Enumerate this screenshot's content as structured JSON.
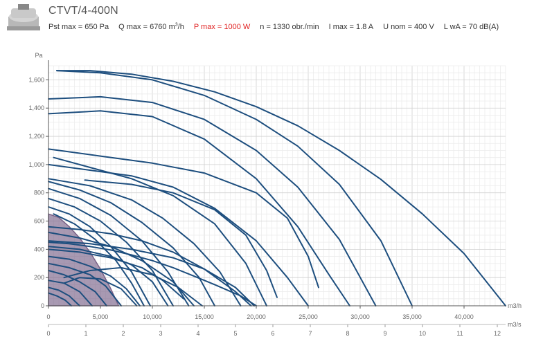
{
  "header": {
    "title": "CTVT/4-400N",
    "specs": {
      "pst_max": "Pst max = 650 Pa",
      "q_max": "Q max = 6760 m",
      "q_max_sup": "3",
      "q_max_unit": "/h",
      "p_max": "P max = 1000 W",
      "n": "n = 1330 obr./min",
      "i_max": "I max = 1.8 A",
      "u_nom": "U nom = 400 V",
      "lwa": "L wA = 70 dB(A)"
    },
    "icons": {
      "product": "roof-fan-icon"
    }
  },
  "colors": {
    "curve": "#1d4e7e",
    "highlight_fill": "#7a6288",
    "grid": "#e3e3e3",
    "axis": "#555555",
    "p_max": "#e01f1f"
  },
  "chart_data": {
    "type": "line",
    "title": "",
    "ylabel": "Pa",
    "xlabel": "m3/h",
    "x2label": "m3/s",
    "xlim": [
      0,
      44000
    ],
    "ylim": [
      0,
      1700
    ],
    "x_ticks": [
      "0",
      "5,000",
      "10,000",
      "15,000",
      "20,000",
      "25,000",
      "30,000",
      "35,000",
      "40,000"
    ],
    "x_tick_values": [
      0,
      5000,
      10000,
      15000,
      20000,
      25000,
      30000,
      35000,
      40000
    ],
    "x2_ticks": [
      "0",
      "1",
      "2",
      "3",
      "4",
      "5",
      "6",
      "7",
      "8",
      "9",
      "10",
      "11",
      "12"
    ],
    "y_ticks": [
      "0",
      "200",
      "400",
      "600",
      "800",
      "1,000",
      "1,200",
      "1,400",
      "1,600"
    ],
    "y_tick_values": [
      0,
      200,
      400,
      600,
      800,
      1000,
      1200,
      1400,
      1600
    ],
    "grid": true,
    "legend": "none",
    "highlighted_curve": {
      "x": [
        0,
        1000,
        2000,
        3000,
        4000,
        5000,
        6000,
        6760
      ],
      "y": [
        650,
        625,
        560,
        480,
        380,
        260,
        120,
        0
      ]
    },
    "series": [
      {
        "x": [
          800,
          4000,
          8000,
          12000,
          16000,
          20000,
          24000,
          28000,
          32000,
          36000,
          40000,
          44000
        ],
        "y": [
          1665,
          1665,
          1640,
          1590,
          1515,
          1410,
          1275,
          1100,
          895,
          650,
          370,
          0
        ]
      },
      {
        "x": [
          800,
          5000,
          10000,
          15000,
          20000,
          24000,
          28000,
          32000,
          35000
        ],
        "y": [
          1665,
          1650,
          1600,
          1490,
          1320,
          1130,
          860,
          460,
          0
        ]
      },
      {
        "x": [
          0,
          5000,
          10000,
          15000,
          20000,
          24000,
          28000,
          31500
        ],
        "y": [
          1465,
          1480,
          1440,
          1320,
          1100,
          840,
          470,
          0
        ]
      },
      {
        "x": [
          0,
          5000,
          10000,
          15000,
          20000,
          24000,
          27000,
          29000
        ],
        "y": [
          1360,
          1380,
          1340,
          1180,
          900,
          560,
          220,
          0
        ]
      },
      {
        "x": [
          0,
          5000,
          10000,
          15000,
          20000,
          23000,
          25000,
          26000
        ],
        "y": [
          1110,
          1060,
          1010,
          940,
          800,
          620,
          350,
          130
        ]
      },
      {
        "x": [
          0,
          4000,
          8000,
          12000,
          16000,
          20000,
          23000,
          25000
        ],
        "y": [
          1000,
          960,
          920,
          840,
          690,
          460,
          200,
          0
        ]
      },
      {
        "x": [
          500,
          4000,
          8000,
          12000,
          16000,
          19000,
          21000
        ],
        "y": [
          1050,
          980,
          900,
          780,
          580,
          300,
          0
        ]
      },
      {
        "x": [
          3500,
          8000,
          12000,
          16000,
          19000,
          21000,
          22000
        ],
        "y": [
          890,
          860,
          800,
          680,
          500,
          250,
          60
        ]
      },
      {
        "x": [
          0,
          4000,
          8000,
          11000,
          14000,
          16500,
          18500
        ],
        "y": [
          900,
          850,
          750,
          620,
          440,
          240,
          0
        ]
      },
      {
        "x": [
          0,
          3000,
          6000,
          9000,
          12000,
          14500,
          16000
        ],
        "y": [
          880,
          820,
          730,
          590,
          410,
          200,
          0
        ]
      },
      {
        "x": [
          0,
          3000,
          6000,
          9000,
          11500,
          13500
        ],
        "y": [
          830,
          760,
          640,
          460,
          240,
          0
        ]
      },
      {
        "x": [
          0,
          2500,
          5000,
          7500,
          10000,
          12000
        ],
        "y": [
          760,
          700,
          600,
          450,
          250,
          0
        ]
      },
      {
        "x": [
          0,
          2000,
          4000,
          6000,
          8000,
          9800
        ],
        "y": [
          700,
          650,
          560,
          420,
          240,
          0
        ]
      },
      {
        "x": [
          500,
          2500,
          4500,
          6500,
          8000,
          9200
        ],
        "y": [
          650,
          580,
          470,
          320,
          160,
          0
        ]
      },
      {
        "x": [
          0,
          3000,
          6000,
          9000,
          12000,
          15000,
          18000,
          19500
        ],
        "y": [
          560,
          540,
          510,
          460,
          380,
          260,
          100,
          0
        ]
      },
      {
        "x": [
          0,
          4000,
          8000,
          12000,
          15000,
          18000,
          19800
        ],
        "y": [
          460,
          440,
          400,
          340,
          260,
          130,
          0
        ]
      },
      {
        "x": [
          0,
          3000,
          6000,
          9000,
          12000,
          14000
        ],
        "y": [
          520,
          480,
          420,
          320,
          170,
          0
        ]
      },
      {
        "x": [
          0,
          3000,
          6000,
          8000,
          10000,
          11500
        ],
        "y": [
          420,
          400,
          350,
          290,
          170,
          0
        ]
      },
      {
        "x": [
          0,
          2000,
          4000,
          6000,
          7500,
          8800
        ],
        "y": [
          350,
          330,
          280,
          210,
          120,
          0
        ]
      },
      {
        "x": [
          0,
          2000,
          4000,
          5500,
          7000
        ],
        "y": [
          300,
          270,
          220,
          140,
          0
        ]
      },
      {
        "x": [
          0,
          1500,
          3000,
          4500,
          5600
        ],
        "y": [
          250,
          220,
          170,
          100,
          0
        ]
      },
      {
        "x": [
          0,
          1500,
          3000,
          4200
        ],
        "y": [
          180,
          160,
          100,
          0
        ]
      },
      {
        "x": [
          0,
          1000,
          2000,
          3000
        ],
        "y": [
          130,
          110,
          70,
          0
        ]
      },
      {
        "x": [
          0,
          800,
          1600,
          2200
        ],
        "y": [
          90,
          70,
          40,
          0
        ]
      },
      {
        "x": [
          0,
          2000,
          4000,
          6000,
          8000,
          10000,
          12000,
          14000,
          16000,
          18500,
          20000
        ],
        "y": [
          450,
          440,
          420,
          395,
          360,
          320,
          270,
          210,
          150,
          70,
          0
        ]
      },
      {
        "x": [
          0,
          3000,
          6000,
          9000,
          11000,
          13000
        ],
        "y": [
          400,
          380,
          340,
          270,
          180,
          50
        ]
      },
      {
        "x": [
          1500,
          4000,
          7000,
          10000,
          12500,
          14800
        ],
        "y": [
          200,
          250,
          270,
          220,
          130,
          0
        ]
      },
      {
        "x": [
          1500,
          3000,
          5000,
          7000,
          8500
        ],
        "y": [
          160,
          200,
          190,
          120,
          0
        ]
      }
    ]
  }
}
